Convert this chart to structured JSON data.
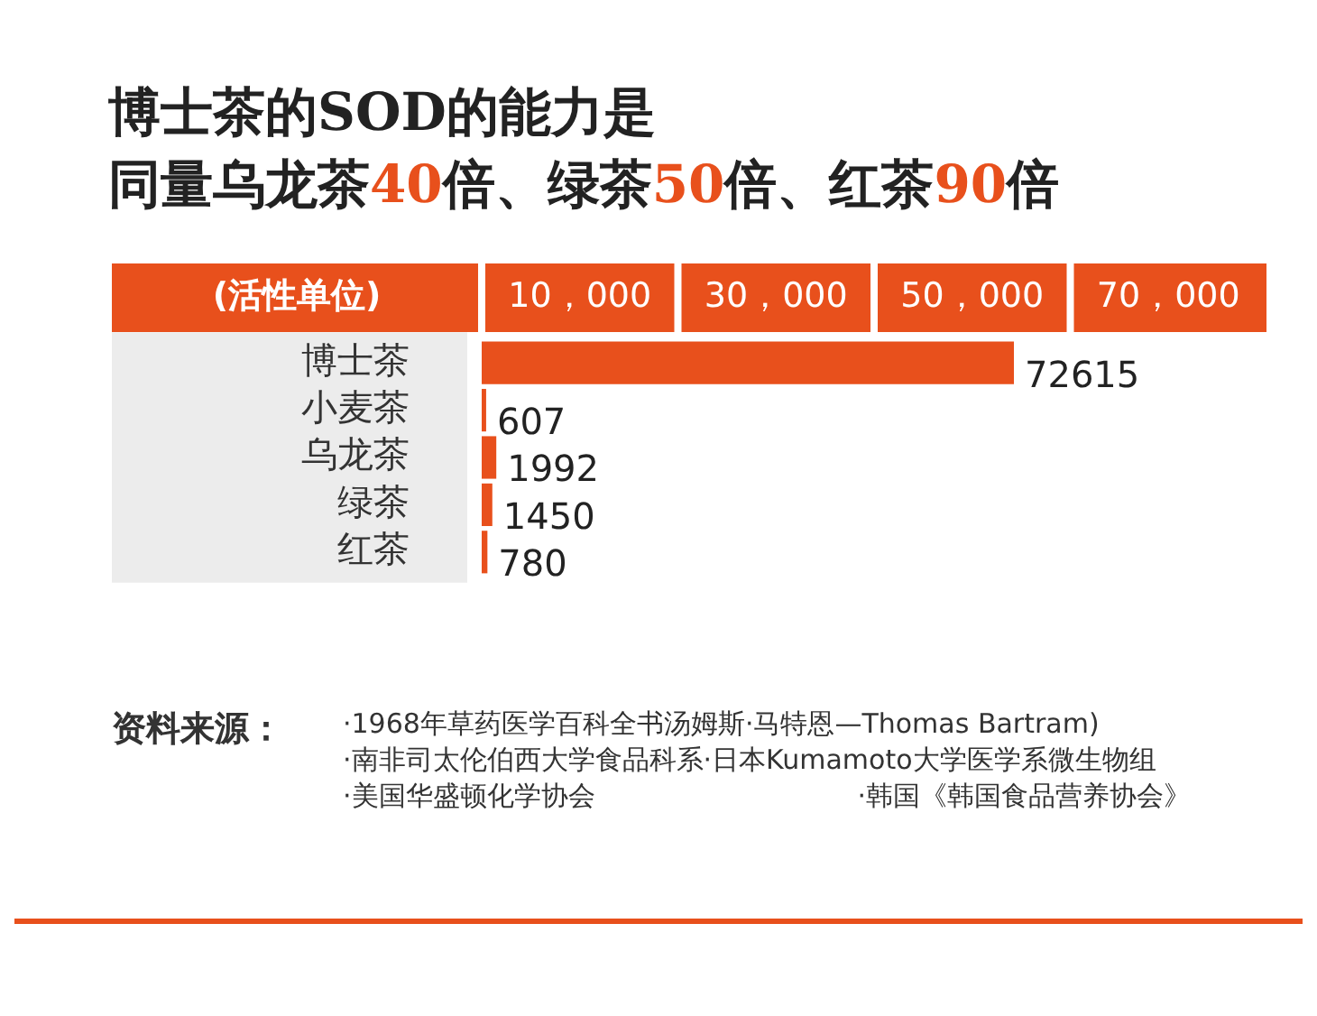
{
  "chart_data": {
    "type": "bar",
    "orientation": "horizontal",
    "title": "博士茶的SOD的能力是",
    "subtitle": "同量乌龙茶40倍、绿茶50倍、红茶90倍",
    "xlabel": "(活性单位)",
    "categories": [
      "博士茶",
      "小麦茶",
      "乌龙茶",
      "绿茶",
      "红茶"
    ],
    "values": [
      72615,
      607,
      1992,
      1450,
      780
    ],
    "color": "#e8501c",
    "data_labels": true,
    "grid": false,
    "legend": false,
    "annotations": [
      "10，000",
      "30，000",
      "50，000",
      "70，000",
      "资料来源：",
      "·1968年草药医学百科全书汤姆斯·马特恩—Thomas Bartram)",
      "·南非司太伦伯西大学食品科系·日本Kumamoto大学医学系微生物组",
      "·美国华盛顿化学协会",
      "·韩国《韩国食品营养协会》"
    ]
  }
}
